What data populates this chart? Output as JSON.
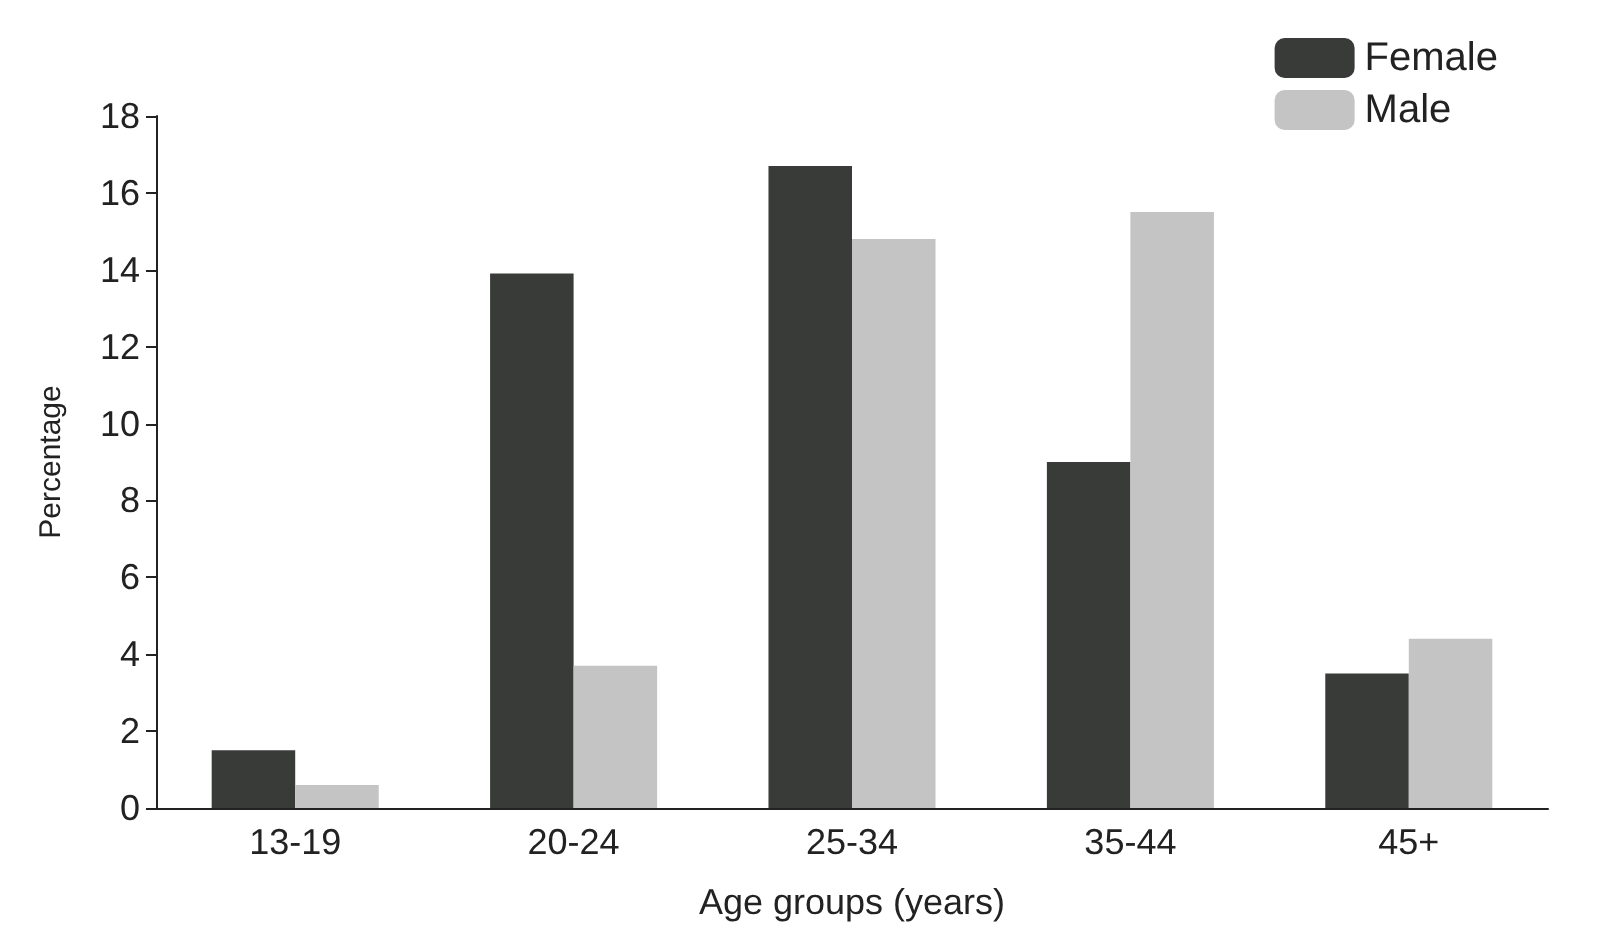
{
  "chart_data": {
    "type": "bar",
    "xlabel": "Age groups (years)",
    "ylabel": "Percentage",
    "categories": [
      "13-19",
      "20-24",
      "25-34",
      "35-44",
      "45+"
    ],
    "series": [
      {
        "name": "Female",
        "color": "#393b39",
        "values": [
          1.5,
          13.9,
          16.7,
          9.0,
          3.5
        ]
      },
      {
        "name": "Male",
        "color": "#c4c4c4",
        "values": [
          0.6,
          3.7,
          14.8,
          15.5,
          4.4
        ]
      }
    ],
    "ylim": [
      0,
      18
    ],
    "yticks": [
      0,
      2,
      4,
      6,
      8,
      10,
      12,
      14,
      16,
      18
    ],
    "grid": false,
    "legend": "top right"
  }
}
